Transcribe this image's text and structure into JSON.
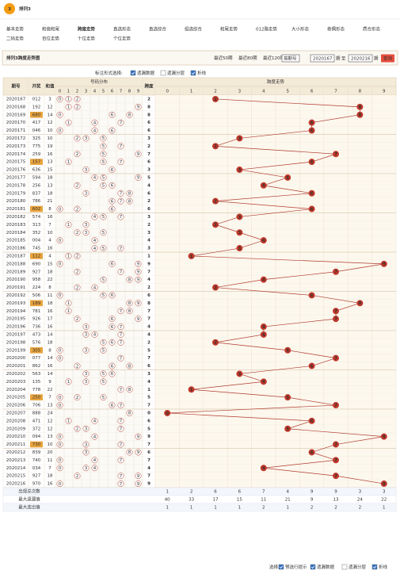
{
  "header": {
    "logo": "3",
    "title": "排列3"
  },
  "nav": [
    "基本走势",
    "和值和尾",
    "跨度走势",
    "直选形态",
    "直选综合",
    "组选综合",
    "和尾走势",
    "012路走势",
    "大小形态",
    "奇偶形态",
    "质合形态",
    "二码走势",
    "百位走势",
    "十位走势",
    "个位走势"
  ],
  "panel": {
    "title": "排列3跨度走势图",
    "periods": [
      "最近50期",
      "最近80期",
      "最近120期"
    ],
    "select": "按期号",
    "from": "2020167",
    "unit": "期",
    "to_label": "至",
    "to": "2020216",
    "query": "查询"
  },
  "options": {
    "label": "标注形式选择:",
    "items": [
      {
        "label": "遗漏数据",
        "checked": true
      },
      {
        "label": "遗漏分层",
        "checked": false
      },
      {
        "label": "折线",
        "checked": true
      }
    ]
  },
  "table": {
    "headers": {
      "period": "期号",
      "draw": "开奖",
      "sum": "和值",
      "dist": "号码分布",
      "span": "跨度",
      "trend": "跨度走势"
    },
    "digits": [
      0,
      1,
      2,
      3,
      4,
      5,
      6,
      7,
      8,
      9
    ],
    "rows": [
      [
        "2020167",
        "012",
        3,
        2
      ],
      [
        "2020168",
        "192",
        12,
        8
      ],
      [
        "2020169",
        "680",
        14,
        8
      ],
      [
        "2020170",
        "417",
        12,
        6
      ],
      [
        "2020171",
        "046",
        10,
        6
      ],
      [
        "2020172",
        "325",
        10,
        3
      ],
      [
        "2020173",
        "775",
        19,
        2
      ],
      [
        "2020174",
        "259",
        16,
        7
      ],
      [
        "2020175",
        "157",
        13,
        6
      ],
      [
        "2020176",
        "636",
        15,
        3
      ],
      [
        "2020177",
        "594",
        18,
        5
      ],
      [
        "2020178",
        "256",
        13,
        4
      ],
      [
        "2020179",
        "837",
        18,
        6
      ],
      [
        "2020180",
        "786",
        21,
        2
      ],
      [
        "2020181",
        "602",
        8,
        6
      ],
      [
        "2020182",
        "574",
        16,
        3
      ],
      [
        "2020183",
        "313",
        7,
        2
      ],
      [
        "2020184",
        "352",
        10,
        3
      ],
      [
        "2020185",
        "004",
        4,
        4
      ],
      [
        "2020186",
        "745",
        16,
        3
      ],
      [
        "2020187",
        "112",
        4,
        1
      ],
      [
        "2020188",
        "690",
        15,
        9
      ],
      [
        "2020189",
        "927",
        18,
        7
      ],
      [
        "2020190",
        "958",
        22,
        4
      ],
      [
        "2020191",
        "224",
        8,
        2
      ],
      [
        "2020192",
        "506",
        11,
        6
      ],
      [
        "2020193",
        "189",
        18,
        8
      ],
      [
        "2020194",
        "781",
        16,
        7
      ],
      [
        "2020195",
        "926",
        17,
        7
      ],
      [
        "2020196",
        "736",
        16,
        4
      ],
      [
        "2020197",
        "473",
        14,
        4
      ],
      [
        "2020198",
        "576",
        18,
        2
      ],
      [
        "2020199",
        "305",
        8,
        5
      ],
      [
        "2020200",
        "077",
        14,
        7
      ],
      [
        "2020201",
        "862",
        16,
        6
      ],
      [
        "2020202",
        "563",
        14,
        3
      ],
      [
        "2020203",
        "135",
        9,
        4
      ],
      [
        "2020204",
        "778",
        22,
        1
      ],
      [
        "2020205",
        "250",
        7,
        5
      ],
      [
        "2020206",
        "706",
        13,
        7
      ],
      [
        "2020207",
        "888",
        24,
        0
      ],
      [
        "2020208",
        "471",
        12,
        6
      ],
      [
        "2020209",
        "372",
        12,
        5
      ],
      [
        "2020210",
        "094",
        13,
        9
      ],
      [
        "2020211",
        "730",
        10,
        7
      ],
      [
        "2020212",
        "839",
        20,
        6
      ],
      [
        "2020213",
        "740",
        11,
        7
      ],
      [
        "2020214",
        "034",
        7,
        4
      ],
      [
        "2020215",
        "927",
        18,
        7
      ],
      [
        "2020216",
        "970",
        16,
        9
      ]
    ]
  },
  "stats": [
    {
      "label": "出现总次数",
      "values": [
        1,
        2,
        6,
        6,
        7,
        4,
        9,
        9,
        3,
        3
      ]
    },
    {
      "label": "最大遗漏值",
      "values": [
        40,
        33,
        17,
        15,
        11,
        21,
        9,
        13,
        24,
        22
      ]
    },
    {
      "label": "最大连出值",
      "values": [
        1,
        1,
        1,
        1,
        2,
        1,
        2,
        2,
        2,
        1
      ]
    }
  ],
  "bottom": {
    "label": "选择:",
    "items": [
      {
        "label": "预选行提示",
        "checked": true
      },
      {
        "label": "遗漏数据",
        "checked": true
      },
      {
        "label": "遗漏分层",
        "checked": false
      },
      {
        "label": "折线",
        "checked": true
      }
    ]
  }
}
